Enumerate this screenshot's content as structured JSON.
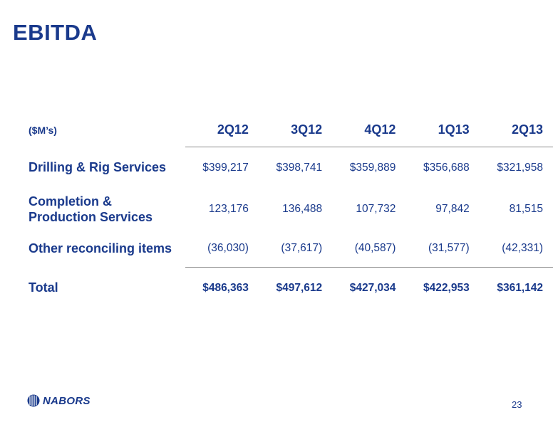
{
  "slide": {
    "title": "EBITDA",
    "page_number": "23"
  },
  "table": {
    "units_label": "($M’s)",
    "columns": [
      "2Q12",
      "3Q12",
      "4Q12",
      "1Q13",
      "2Q13"
    ],
    "rows": [
      {
        "label": "Drilling & Rig Services",
        "values": [
          "$399,217",
          "$398,741",
          "$359,889",
          "$356,688",
          "$321,958"
        ]
      },
      {
        "label_line1": "Completion &",
        "label_line2": "Production Services",
        "values": [
          "123,176",
          "136,488",
          "107,732",
          "97,842",
          "81,515"
        ]
      },
      {
        "label": "Other reconciling items",
        "values": [
          "(36,030)",
          "(37,617)",
          "(40,587)",
          "(31,577)",
          "(42,331)"
        ]
      },
      {
        "label": "Total",
        "values": [
          "$486,363",
          "$497,612",
          "$427,034",
          "$422,953",
          "$361,142"
        ]
      }
    ]
  },
  "logo": {
    "text": "NABORS",
    "icon": "nabors-globe-icon",
    "color": "#1a3a8c"
  },
  "colors": {
    "text": "#1a3a8c",
    "rule": "#8a8a8a"
  }
}
